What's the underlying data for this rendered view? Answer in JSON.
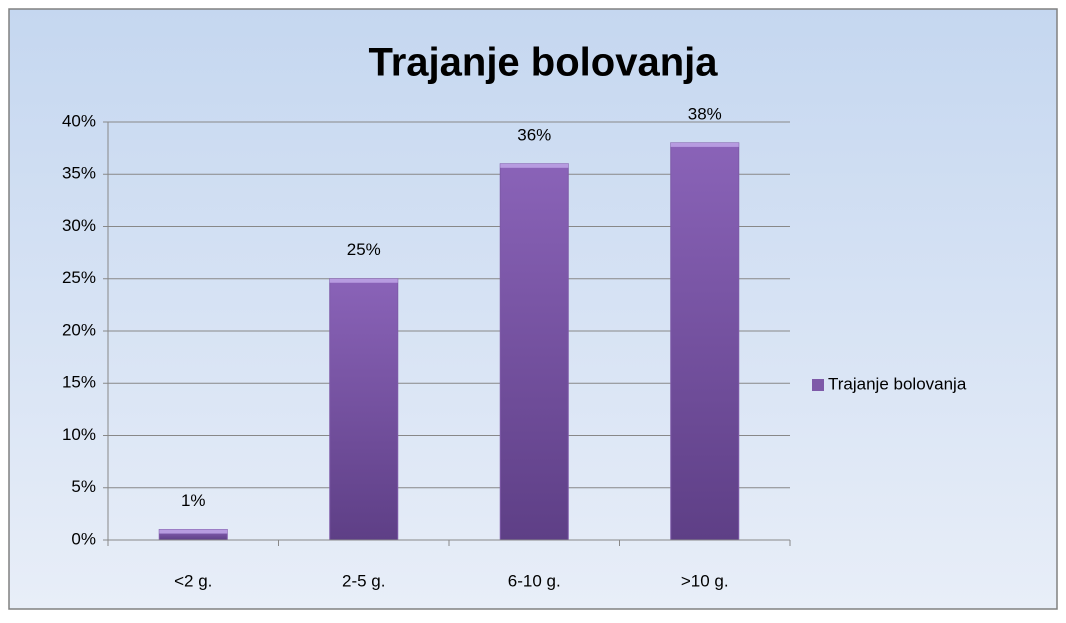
{
  "chart_data": {
    "type": "bar",
    "title": "Trajanje bolovanja",
    "categories": [
      "<2 g.",
      "2-5 g.",
      "6-10 g.",
      ">10 g."
    ],
    "series": [
      {
        "name": "Trajanje bolovanja",
        "color": "#7e5aa8",
        "values": [
          1,
          25,
          36,
          38
        ],
        "value_labels": [
          "1%",
          "25%",
          "36%",
          "38%"
        ]
      }
    ],
    "ylim": [
      0,
      40
    ],
    "yticks": [
      {
        "value": 0,
        "label": "0%"
      },
      {
        "value": 5,
        "label": "5%"
      },
      {
        "value": 10,
        "label": "10%"
      },
      {
        "value": 15,
        "label": "15%"
      },
      {
        "value": 20,
        "label": "20%"
      },
      {
        "value": 25,
        "label": "25%"
      },
      {
        "value": 30,
        "label": "30%"
      },
      {
        "value": 35,
        "label": "35%"
      },
      {
        "value": 40,
        "label": "40%"
      }
    ],
    "grid": true,
    "legend": "right"
  }
}
